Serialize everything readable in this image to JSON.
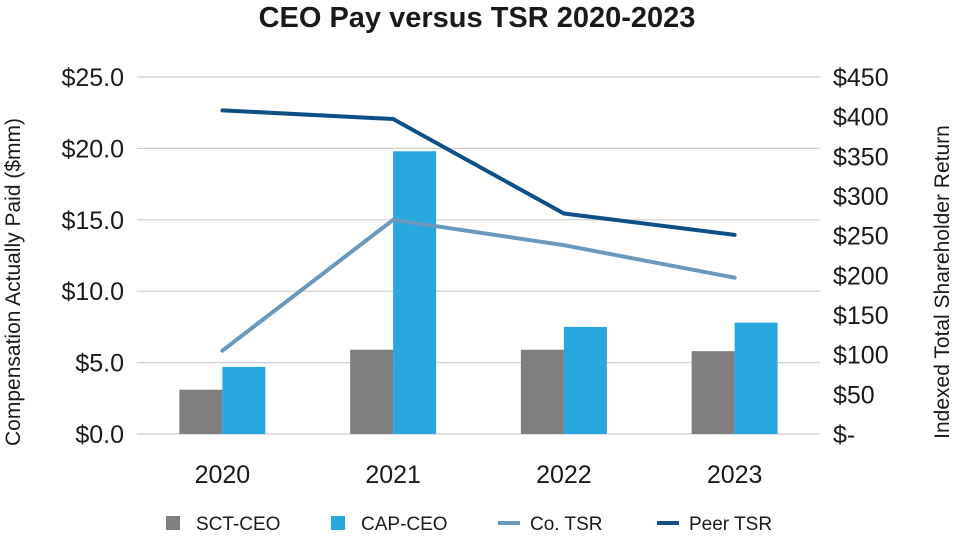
{
  "chart_data": {
    "type": "bar",
    "title": "CEO Pay versus TSR 2020-2023",
    "categories": [
      "2020",
      "2021",
      "2022",
      "2023"
    ],
    "ylabel": "Compensation Actually Paid ($mm)",
    "y2label": "Indexed Total Shareholder Return",
    "ylim": [
      0,
      25
    ],
    "y2lim": [
      0,
      450
    ],
    "yticks": [
      0,
      5,
      10,
      15,
      20,
      25
    ],
    "ytick_labels": [
      "$0.0",
      "$5.0",
      "$10.0",
      "$15.0",
      "$20.0",
      "$25.0"
    ],
    "y2ticks": [
      0,
      50,
      100,
      150,
      200,
      250,
      300,
      350,
      400,
      450
    ],
    "y2tick_labels": [
      "$-",
      "$50",
      "$100",
      "$150",
      "$200",
      "$250",
      "$300",
      "$350",
      "$400",
      "$450"
    ],
    "grid": true,
    "legend_position": "bottom",
    "series": [
      {
        "name": "SCT-CEO",
        "kind": "bar",
        "axis": "left",
        "color": "#7f7f7f",
        "values": [
          3.1,
          5.9,
          5.9,
          5.8
        ]
      },
      {
        "name": "CAP-CEO",
        "kind": "bar",
        "axis": "left",
        "color": "#29a8e0",
        "values": [
          4.7,
          19.8,
          7.5,
          7.8
        ]
      },
      {
        "name": "Co. TSR",
        "kind": "line",
        "axis": "right",
        "color": "#6a99bd",
        "values": [
          105,
          270,
          238,
          197
        ]
      },
      {
        "name": "Peer TSR",
        "kind": "line",
        "axis": "right",
        "color": "#0d4f86",
        "values": [
          408,
          397,
          278,
          251
        ]
      }
    ]
  }
}
